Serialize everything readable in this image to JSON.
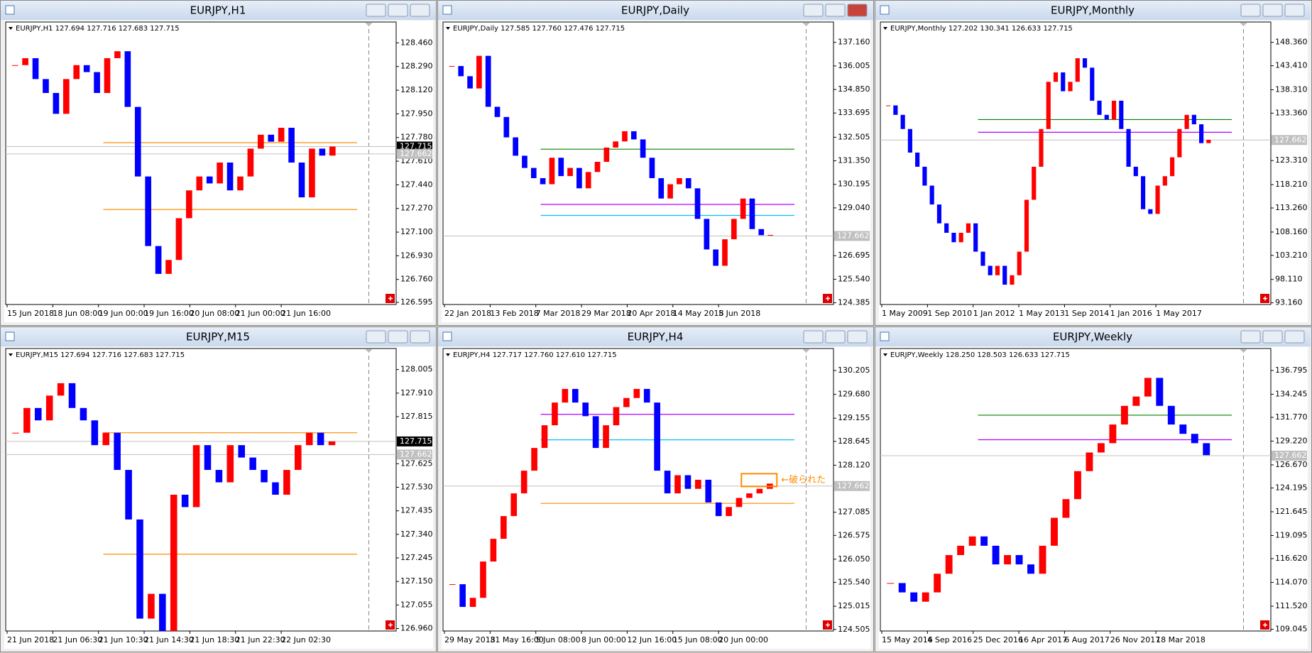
{
  "chart_data": [
    {
      "type": "candlestick",
      "title": "EURJPY,H1",
      "subtitle": "EURJPY,H1 127.694 127.716 127.683 127.715",
      "values": [
        128.3,
        128.35,
        128.2,
        128.1,
        127.95,
        128.2,
        128.3,
        128.25,
        128.1,
        128.35,
        128.4,
        128.0,
        127.5,
        127.0,
        126.8,
        126.9,
        127.2,
        127.4,
        127.5,
        127.45,
        127.6,
        127.4,
        127.5,
        127.7,
        127.8,
        127.75,
        127.85,
        127.6,
        127.35,
        127.7,
        127.65,
        127.715
      ],
      "ylim": [
        126.58,
        128.61
      ],
      "yticks": [
        {
          "value": 128.46,
          "label": "128.460"
        },
        {
          "value": 128.29,
          "label": "128.290"
        },
        {
          "value": 128.12,
          "label": "128.120"
        },
        {
          "value": 127.95,
          "label": "127.950"
        },
        {
          "value": 127.78,
          "label": "127.780"
        },
        {
          "value": 127.61,
          "label": "127.610"
        },
        {
          "value": 127.44,
          "label": "127.440"
        },
        {
          "value": 127.27,
          "label": "127.270"
        },
        {
          "value": 127.1,
          "label": "127.100"
        },
        {
          "value": 126.93,
          "label": "126.930"
        },
        {
          "value": 126.76,
          "label": "126.760"
        },
        126.595
      ],
      "xtick_labels": [
        "15 Jun 2018",
        "18 Jun 08:00",
        "19 Jun 00:00",
        "19 Jun 16:00",
        "20 Jun 08:00",
        "21 Jun 00:00",
        "21 Jun 16:00"
      ],
      "price_labels": [
        127.715,
        127.662
      ],
      "price_label_colors": [
        "#000000",
        "#c0c0c0"
      ],
      "lines": [
        {
          "value": 127.743,
          "color": "#ff8c00"
        },
        {
          "value": 127.263,
          "color": "#ff8c00"
        }
      ]
    },
    {
      "type": "candlestick",
      "title": "EURJPY,Daily",
      "subtitle": "EURJPY,Daily 127.585 127.760 127.476 127.715",
      "values": [
        136.0,
        135.5,
        134.9,
        136.5,
        134.0,
        133.5,
        132.5,
        131.6,
        131.0,
        130.5,
        130.2,
        131.5,
        130.6,
        131.0,
        130.0,
        130.8,
        131.3,
        132.0,
        132.3,
        132.8,
        132.4,
        131.5,
        130.5,
        129.5,
        130.2,
        130.5,
        130.0,
        128.5,
        127.0,
        126.2,
        127.5,
        128.5,
        129.5,
        128.0,
        127.7,
        127.715
      ],
      "ylim": [
        124.3,
        138.16
      ],
      "yticks": [
        {
          "value": 137.16,
          "label": "137.160"
        },
        136.005,
        {
          "value": 134.85,
          "label": "134.850"
        },
        133.695,
        132.505,
        {
          "value": 131.35,
          "label": "131.350"
        },
        130.195,
        {
          "value": 129.04,
          "label": "129.040"
        },
        126.695,
        {
          "value": 125.54,
          "label": "125.540"
        },
        124.385
      ],
      "xtick_labels": [
        "22 Jan 2018",
        "13 Feb 2018",
        "7 Mar 2018",
        "29 Mar 2018",
        "20 Apr 2018",
        "14 May 2018",
        "5 Jun 2018"
      ],
      "price_labels": [
        127.662
      ],
      "price_label_colors": [
        "#c0c0c0"
      ],
      "lines": [
        {
          "value": 131.92,
          "color": "#008000"
        },
        {
          "value": 129.21,
          "color": "#b400ff"
        },
        {
          "value": 128.67,
          "color": "#00bfff"
        }
      ]
    },
    {
      "type": "candlestick",
      "title": "EURJPY,Monthly",
      "subtitle": "EURJPY,Monthly 127.202 130.341 126.633 127.715",
      "values": [
        135,
        133,
        130,
        125,
        122,
        118,
        114,
        110,
        108,
        106,
        108,
        110,
        104,
        101,
        99,
        101,
        97,
        99,
        104,
        115,
        122,
        130,
        140,
        142,
        138,
        140,
        145,
        143,
        136,
        133,
        132,
        136,
        130,
        122,
        120,
        113,
        112,
        118,
        120,
        124,
        130,
        133,
        131,
        127,
        127.715
      ],
      "ylim": [
        92.8,
        152.68
      ],
      "yticks": [
        {
          "value": 148.36,
          "label": "148.360"
        },
        {
          "value": 143.41,
          "label": "143.410"
        },
        {
          "value": 138.31,
          "label": "138.310"
        },
        {
          "value": 133.36,
          "label": "133.360"
        },
        {
          "value": 123.31,
          "label": "123.310"
        },
        {
          "value": 118.21,
          "label": "118.210"
        },
        {
          "value": 113.26,
          "label": "113.260"
        },
        {
          "value": 108.16,
          "label": "108.160"
        },
        {
          "value": 103.21,
          "label": "103.210"
        },
        {
          "value": 98.11,
          "label": "98.110"
        },
        {
          "value": 93.16,
          "label": "93.160"
        }
      ],
      "xtick_labels": [
        "1 May 2009",
        "1 Sep 2010",
        "1 Jan 2012",
        "1 May 2013",
        "1 Sep 2014",
        "1 Jan 2016",
        "1 May 2017"
      ],
      "price_labels": [
        127.662
      ],
      "price_label_colors": [
        "#c0c0c0"
      ],
      "lines": [
        {
          "value": 132.0,
          "color": "#008000"
        },
        {
          "value": 129.3,
          "color": "#b400ff"
        }
      ]
    },
    {
      "type": "candlestick",
      "title": "EURJPY,M15",
      "subtitle": "EURJPY,M15 127.694 127.716 127.683 127.715",
      "values": [
        127.75,
        127.85,
        127.8,
        127.9,
        127.95,
        127.85,
        127.8,
        127.7,
        127.75,
        127.6,
        127.4,
        127.0,
        127.1,
        126.95,
        127.5,
        127.45,
        127.7,
        127.6,
        127.55,
        127.7,
        127.65,
        127.6,
        127.55,
        127.5,
        127.6,
        127.7,
        127.75,
        127.7,
        127.715
      ],
      "ylim": [
        126.95,
        128.09
      ],
      "yticks": [
        128.005,
        {
          "value": 127.91,
          "label": "127.910"
        },
        127.815,
        127.625,
        {
          "value": 127.53,
          "label": "127.530"
        },
        127.435,
        {
          "value": 127.34,
          "label": "127.340"
        },
        127.245,
        {
          "value": 127.15,
          "label": "127.150"
        },
        127.055,
        {
          "value": 126.96,
          "label": "126.960"
        }
      ],
      "xtick_labels": [
        "21 Jun 2018",
        "21 Jun 06:30",
        "21 Jun 10:30",
        "21 Jun 14:30",
        "21 Jun 18:30",
        "21 Jun 22:30",
        "22 Jun 02:30"
      ],
      "price_labels": [
        127.715,
        127.662
      ],
      "price_label_colors": [
        "#000000",
        "#c0c0c0"
      ],
      "lines": [
        {
          "value": 127.75,
          "color": "#ff8c00"
        },
        {
          "value": 127.26,
          "color": "#ff8c00"
        }
      ]
    },
    {
      "type": "candlestick",
      "title": "EURJPY,H4",
      "subtitle": "EURJPY,H4 127.717 127.760 127.610 127.715",
      "values": [
        125.5,
        125.0,
        125.2,
        126.0,
        126.5,
        127.0,
        127.5,
        128.0,
        128.5,
        129.0,
        129.5,
        129.8,
        129.5,
        129.2,
        128.5,
        129.0,
        129.4,
        129.6,
        129.8,
        129.5,
        128.0,
        127.5,
        127.9,
        127.6,
        127.8,
        127.3,
        127.0,
        127.2,
        127.4,
        127.5,
        127.6,
        127.715
      ],
      "ylim": [
        124.47,
        130.69
      ],
      "yticks": [
        130.205,
        {
          "value": 129.68,
          "label": "129.680"
        },
        129.155,
        128.645,
        {
          "value": 128.12,
          "label": "128.120"
        },
        127.085,
        126.575,
        {
          "value": 126.05,
          "label": "126.050"
        },
        {
          "value": 125.54,
          "label": "125.540"
        },
        125.015,
        124.505
      ],
      "xtick_labels": [
        "29 May 2018",
        "31 May 16:00",
        "5 Jun 08:00",
        "8 Jun 00:00",
        "12 Jun 16:00",
        "15 Jun 08:00",
        "20 Jun 00:00"
      ],
      "price_labels": [
        127.662
      ],
      "price_label_colors": [
        "#c0c0c0"
      ],
      "lines": [
        {
          "value": 129.24,
          "color": "#b400ff"
        },
        {
          "value": 128.68,
          "color": "#00bfff"
        },
        {
          "value": 127.28,
          "color": "#ff8c00"
        }
      ],
      "annotation": "←破られた",
      "annotation_color": "#ff8c00"
    },
    {
      "type": "candlestick",
      "title": "EURJPY,Weekly",
      "subtitle": "EURJPY,Weekly 128.250 128.503 126.633 127.715",
      "values": [
        114,
        113,
        112,
        113,
        115,
        117,
        118,
        119,
        118,
        116,
        117,
        116,
        115,
        118,
        121,
        123,
        126,
        128,
        129,
        131,
        133,
        134,
        136,
        133,
        131,
        130,
        129,
        127.715
      ],
      "ylim": [
        108.86,
        139.15
      ],
      "yticks": [
        136.795,
        134.245,
        {
          "value": 131.77,
          "label": "131.770"
        },
        {
          "value": 129.22,
          "label": "129.220"
        },
        {
          "value": 126.67,
          "label": "126.670"
        },
        124.195,
        121.645,
        119.095,
        {
          "value": 116.62,
          "label": "116.620"
        },
        {
          "value": 114.07,
          "label": "114.070"
        },
        {
          "value": 111.52,
          "label": "111.520"
        },
        109.045
      ],
      "xtick_labels": [
        "15 May 2016",
        "4 Sep 2016",
        "25 Dec 2016",
        "16 Apr 2017",
        "6 Aug 2017",
        "26 Nov 2017",
        "18 Mar 2018"
      ],
      "price_labels": [
        127.662
      ],
      "price_label_colors": [
        "#c0c0c0"
      ],
      "lines": [
        {
          "value": 132.0,
          "color": "#008000"
        },
        {
          "value": 129.37,
          "color": "#b400ff"
        }
      ]
    }
  ]
}
